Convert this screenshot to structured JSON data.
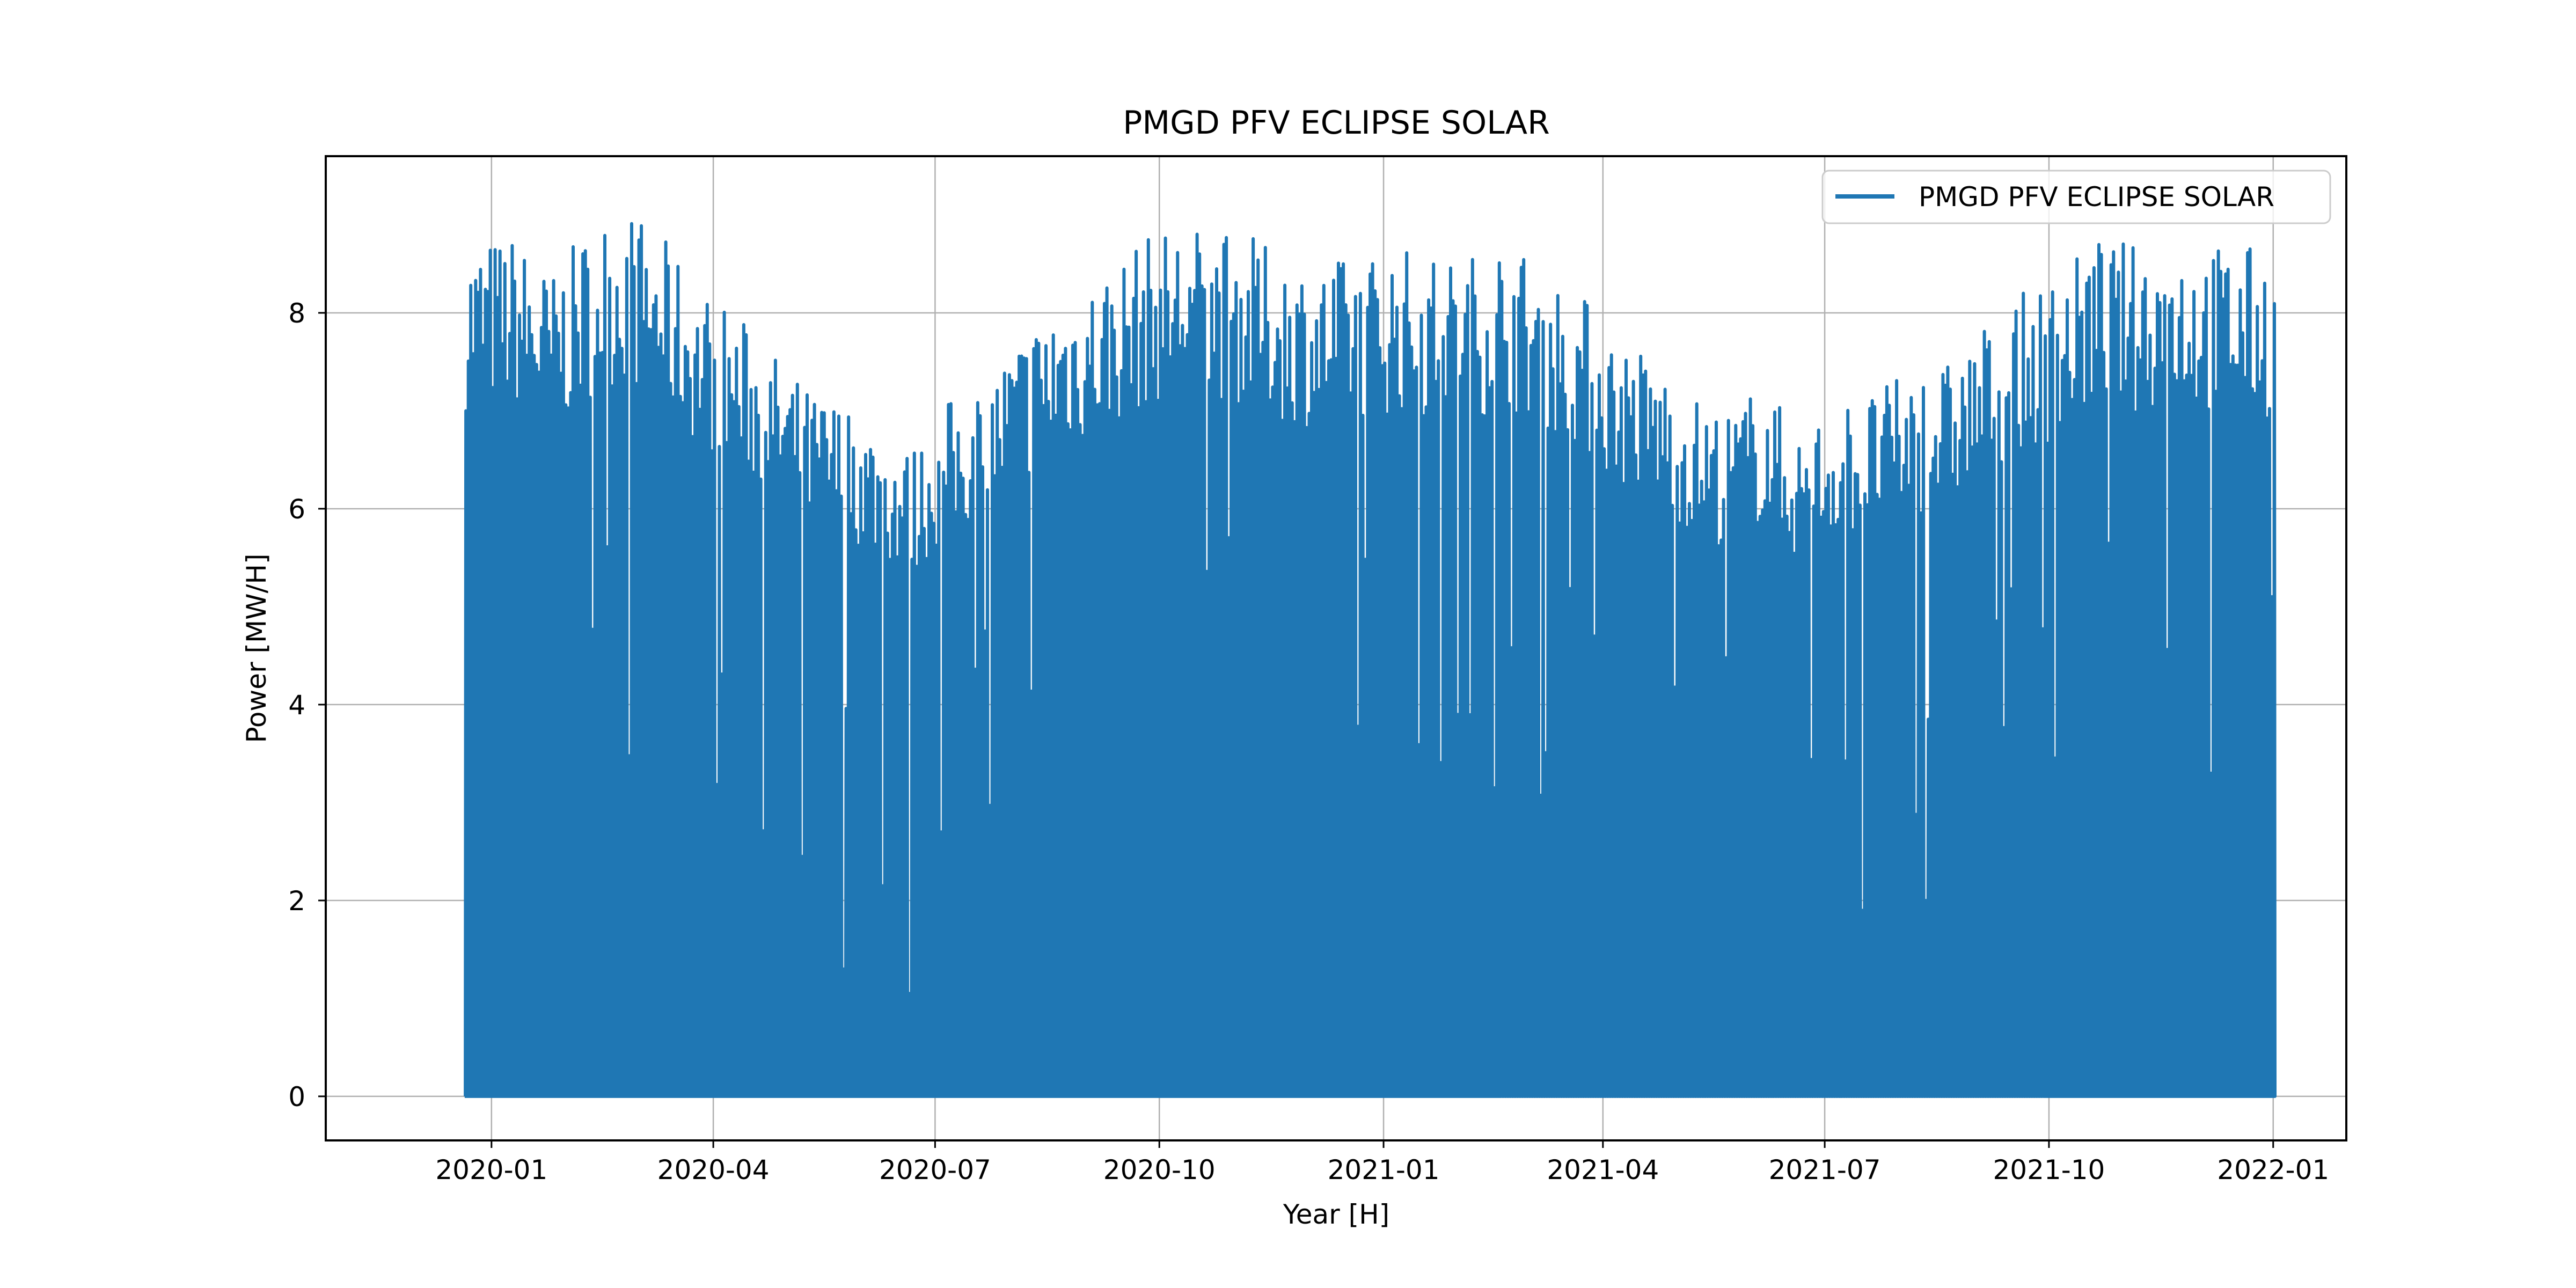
{
  "chart_data": {
    "type": "line",
    "title": "PMGD PFV ECLIPSE SOLAR",
    "xlabel": "Year [H]",
    "ylabel": "Power [MW/H]",
    "xlim": [
      "2019-10-25",
      "2022-01-31"
    ],
    "ylim": [
      -0.45,
      9.6
    ],
    "x_ticks": [
      "2020-01",
      "2020-04",
      "2020-07",
      "2020-10",
      "2021-01",
      "2021-04",
      "2021-07",
      "2021-10",
      "2022-01"
    ],
    "y_ticks": [
      0,
      2,
      4,
      6,
      8
    ],
    "y_tick_labels": [
      "0",
      "2",
      "4",
      "6",
      "8"
    ],
    "grid": true,
    "legend_position": "top-right",
    "series": [
      {
        "name": "PMGD PFV ECLIPSE SOLAR",
        "color": "#1f77b4",
        "x_range": [
          "2019-12-21",
          "2022-01-01"
        ],
        "resolution": "hourly",
        "daily_peak_envelope": {
          "x": [
            "2019-12-21",
            "2020-01-10",
            "2020-01-25",
            "2020-02-10",
            "2020-02-25",
            "2020-03-10",
            "2020-03-25",
            "2020-04-10",
            "2020-04-25",
            "2020-05-10",
            "2020-05-25",
            "2020-06-10",
            "2020-06-21",
            "2020-07-05",
            "2020-07-20",
            "2020-08-05",
            "2020-08-20",
            "2020-09-05",
            "2020-09-20",
            "2020-10-05",
            "2020-10-20",
            "2020-11-05",
            "2020-11-20",
            "2020-12-05",
            "2020-12-20",
            "2021-01-05",
            "2021-01-20",
            "2021-02-05",
            "2021-02-20",
            "2021-03-05",
            "2021-03-20",
            "2021-04-05",
            "2021-04-20",
            "2021-05-05",
            "2021-05-20",
            "2021-06-05",
            "2021-06-20",
            "2021-07-05",
            "2021-07-20",
            "2021-08-05",
            "2021-08-20",
            "2021-09-05",
            "2021-09-20",
            "2021-10-05",
            "2021-10-20",
            "2021-11-05",
            "2021-11-20",
            "2021-12-05",
            "2021-12-20",
            "2022-01-01"
          ],
          "y": [
            8.75,
            8.8,
            8.4,
            8.9,
            9.1,
            8.8,
            8.3,
            8.0,
            7.6,
            7.2,
            7.1,
            6.8,
            6.6,
            7.1,
            7.3,
            7.8,
            8.2,
            8.4,
            8.7,
            8.9,
            8.9,
            8.8,
            8.6,
            8.5,
            8.6,
            8.7,
            8.6,
            8.6,
            8.8,
            8.5,
            8.3,
            7.8,
            7.6,
            7.2,
            7.0,
            7.3,
            6.8,
            7.1,
            7.2,
            7.4,
            7.5,
            7.9,
            8.2,
            8.4,
            8.8,
            8.7,
            8.8,
            8.7,
            8.7,
            8.6
          ]
        },
        "daily_peak_dips": [
          {
            "x": "2020-05-24",
            "y": 1.3
          },
          {
            "x": "2020-06-09",
            "y": 2.15
          },
          {
            "x": "2020-06-20",
            "y": 1.05
          },
          {
            "x": "2020-05-07",
            "y": 2.45
          },
          {
            "x": "2020-07-03",
            "y": 2.7
          },
          {
            "x": "2021-02-15",
            "y": 3.15
          },
          {
            "x": "2021-07-16",
            "y": 1.9
          },
          {
            "x": "2021-08-11",
            "y": 2.0
          },
          {
            "x": "2021-03-28",
            "y": 4.7
          },
          {
            "x": "2021-01-31",
            "y": 3.9
          },
          {
            "x": "2021-12-06",
            "y": 3.3
          }
        ],
        "night_value": 0
      }
    ]
  }
}
